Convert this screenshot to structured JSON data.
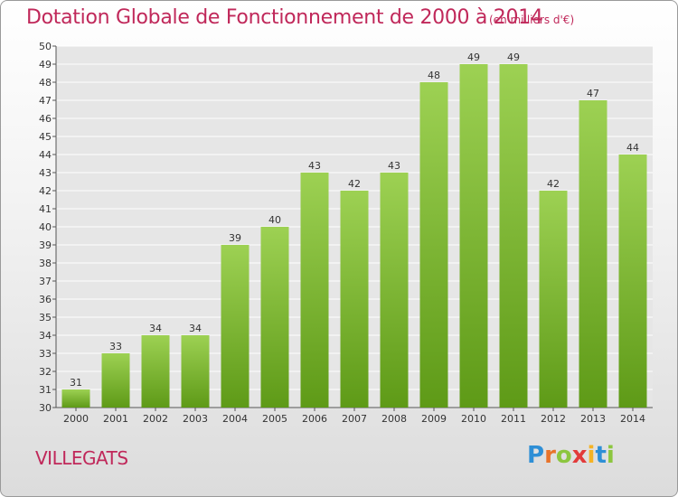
{
  "header": {
    "title": "Dotation Globale de Fonctionnement de 2000 à 2014",
    "unit": "(en milliers d'€)"
  },
  "commune": "VILLEGATS",
  "logo": {
    "letters": [
      "P",
      "r",
      "o",
      "x",
      "i",
      "t",
      "i"
    ],
    "colors": [
      "#2e8fd6",
      "#e8732a",
      "#8cc63f",
      "#e23a3a",
      "#f5b324",
      "#2e8fd6",
      "#8cc63f"
    ]
  },
  "colors": {
    "bar_top": "#9dd153",
    "bar_bottom": "#5e9a17",
    "grid": "#ffffff",
    "title": "#c0285a"
  },
  "chart_data": {
    "type": "bar",
    "title": "Dotation Globale de Fonctionnement de 2000 à 2014",
    "subtitle": "(en milliers d'€)",
    "xlabel": "",
    "ylabel": "",
    "categories": [
      "2000",
      "2001",
      "2002",
      "2003",
      "2004",
      "2005",
      "2006",
      "2007",
      "2008",
      "2009",
      "2010",
      "2011",
      "2012",
      "2013",
      "2014"
    ],
    "values": [
      31,
      33,
      34,
      34,
      39,
      40,
      43,
      42,
      43,
      48,
      49,
      49,
      42,
      47,
      44
    ],
    "ylim": [
      30,
      50
    ],
    "yticks": [
      30,
      31,
      32,
      33,
      34,
      35,
      36,
      37,
      38,
      39,
      40,
      41,
      42,
      43,
      44,
      45,
      46,
      47,
      48,
      49,
      50
    ],
    "grid": true,
    "data_labels": true
  }
}
